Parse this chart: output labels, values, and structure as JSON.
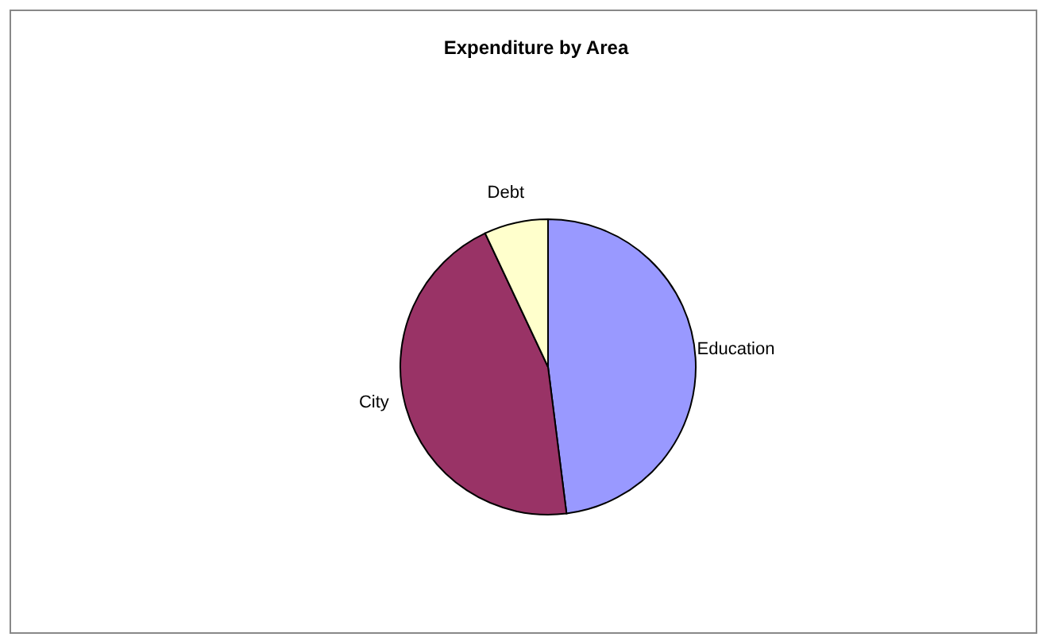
{
  "chart_data": {
    "type": "pie",
    "title": "Expenditure by Area",
    "categories": [
      "Education",
      "City",
      "Debt"
    ],
    "values": [
      48,
      45,
      7
    ],
    "colors": [
      "#9999ff",
      "#993366",
      "#ffffcc"
    ],
    "legend": false
  }
}
